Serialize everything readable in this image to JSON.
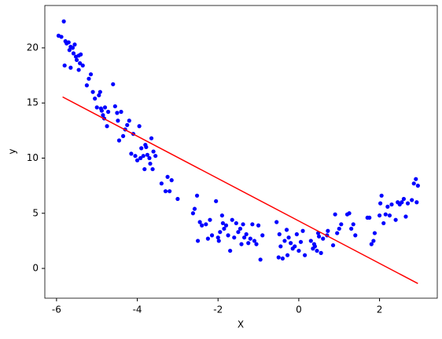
{
  "chart_data": {
    "type": "scatter",
    "xlabel": "X",
    "ylabel": "y",
    "xlim": [
      -6.29,
      3.43
    ],
    "ylim": [
      -2.7,
      23.84
    ],
    "xticks": [
      -6,
      -4,
      -2,
      0,
      2
    ],
    "yticks": [
      0,
      5,
      10,
      15,
      20
    ],
    "series": [
      {
        "type": "scatter",
        "color": "#0000ff",
        "x": [
          -5.95,
          -5.88,
          -5.82,
          -5.78,
          -5.75,
          -5.7,
          -5.68,
          -5.65,
          -5.6,
          -5.58,
          -5.55,
          -5.52,
          -5.5,
          -5.45,
          -5.42,
          -5.4,
          -5.35,
          -5.8,
          -5.65,
          -5.45,
          -5.25,
          -5.2,
          -5.15,
          -5.1,
          -5.05,
          -5.0,
          -4.95,
          -4.92,
          -4.9,
          -4.88,
          -4.85,
          -4.82,
          -4.8,
          -4.75,
          -4.72,
          -4.6,
          -4.55,
          -4.5,
          -4.48,
          -4.45,
          -4.4,
          -4.35,
          -4.3,
          -4.25,
          -4.2,
          -4.15,
          -4.1,
          -4.05,
          -4.0,
          -3.95,
          -3.92,
          -3.9,
          -3.85,
          -3.82,
          -3.8,
          -3.78,
          -3.75,
          -3.7,
          -3.68,
          -3.65,
          -3.62,
          -3.6,
          -3.55,
          -3.4,
          -3.3,
          -3.25,
          -3.2,
          -3.15,
          -3.0,
          -2.62,
          -2.58,
          -2.52,
          -2.5,
          -2.45,
          -2.4,
          -2.3,
          -2.25,
          -2.2,
          -2.15,
          -2.05,
          -2.0,
          -1.98,
          -1.95,
          -1.9,
          -1.88,
          -1.85,
          -1.8,
          -1.75,
          -1.7,
          -1.65,
          -1.6,
          -1.55,
          -1.5,
          -1.45,
          -1.42,
          -1.38,
          -1.35,
          -1.3,
          -1.25,
          -1.2,
          -1.15,
          -1.1,
          -1.05,
          -1.0,
          -0.95,
          -0.9,
          -0.55,
          -0.5,
          -0.48,
          -0.45,
          -0.4,
          -0.35,
          -0.3,
          -0.28,
          -0.25,
          -0.2,
          -0.15,
          -0.1,
          -0.05,
          0.0,
          0.05,
          0.1,
          0.15,
          0.3,
          0.35,
          0.38,
          0.4,
          0.45,
          0.48,
          0.5,
          0.55,
          0.6,
          0.7,
          0.72,
          0.85,
          0.9,
          0.95,
          1.0,
          1.05,
          1.2,
          1.25,
          1.3,
          1.35,
          1.4,
          1.7,
          1.75,
          1.8,
          1.85,
          1.88,
          2.0,
          2.02,
          2.05,
          2.1,
          2.15,
          2.2,
          2.25,
          2.3,
          2.4,
          2.45,
          2.5,
          2.55,
          2.6,
          2.65,
          2.7,
          2.8,
          2.85,
          2.9,
          2.92,
          2.95
        ],
        "values": [
          21.1,
          21.0,
          22.4,
          20.6,
          20.4,
          20.5,
          19.8,
          20.1,
          20.0,
          19.5,
          20.3,
          19.2,
          18.9,
          19.3,
          18.6,
          19.4,
          18.4,
          18.4,
          18.2,
          18.0,
          16.6,
          17.2,
          17.6,
          16.0,
          15.4,
          14.6,
          15.7,
          16.0,
          14.5,
          14.3,
          13.9,
          13.6,
          14.6,
          12.9,
          14.2,
          16.7,
          14.7,
          14.1,
          13.4,
          11.6,
          14.2,
          12.0,
          12.6,
          13.0,
          13.4,
          10.4,
          12.2,
          10.2,
          9.8,
          12.9,
          10.0,
          10.9,
          10.2,
          9.0,
          11.2,
          11.0,
          10.3,
          10.0,
          9.5,
          11.8,
          9.0,
          10.6,
          10.2,
          7.7,
          7.0,
          8.3,
          7.0,
          8.0,
          6.3,
          5.0,
          5.4,
          6.6,
          2.5,
          4.2,
          3.9,
          4.0,
          2.7,
          4.4,
          3.0,
          6.1,
          2.8,
          2.5,
          3.3,
          4.8,
          4.1,
          3.6,
          3.9,
          3.0,
          1.6,
          4.4,
          2.8,
          4.1,
          3.3,
          3.6,
          2.2,
          4.0,
          2.8,
          3.1,
          2.3,
          2.7,
          4.0,
          2.5,
          2.2,
          3.9,
          0.8,
          3.0,
          4.2,
          1.0,
          3.1,
          2.0,
          0.9,
          2.5,
          3.5,
          1.2,
          2.8,
          2.3,
          1.8,
          2.0,
          3.1,
          1.6,
          2.4,
          3.4,
          1.2,
          2.5,
          1.8,
          2.2,
          2.0,
          1.6,
          3.2,
          2.9,
          1.4,
          2.7,
          3.0,
          3.4,
          2.1,
          4.9,
          3.2,
          3.6,
          4.0,
          4.9,
          5.0,
          3.6,
          4.0,
          3.0,
          4.6,
          4.6,
          2.2,
          2.5,
          3.2,
          4.8,
          5.9,
          6.6,
          4.1,
          4.9,
          5.6,
          4.8,
          5.8,
          4.4,
          6.0,
          5.8,
          6.0,
          6.3,
          4.7,
          5.9,
          6.2,
          7.7,
          8.1,
          6.0,
          7.5
        ]
      },
      {
        "type": "line",
        "color": "#ff0000",
        "x": [
          -5.85,
          2.95
        ],
        "values": [
          15.55,
          -1.37
        ]
      }
    ]
  }
}
